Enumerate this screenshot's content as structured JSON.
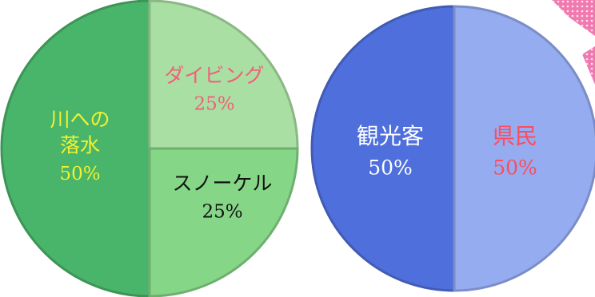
{
  "chart_data": [
    {
      "type": "pie",
      "slices": [
        {
          "label_lines": [
            "川への",
            "落水"
          ],
          "value": 50,
          "value_label": "50%",
          "color": "#49b56a",
          "label_color": "#f2f230"
        },
        {
          "label_lines": [
            "ダイビング"
          ],
          "value": 25,
          "value_label": "25%",
          "color": "#a9dfa2",
          "label_color": "#f0607a"
        },
        {
          "label_lines": [
            "スノーケル"
          ],
          "value": 25,
          "value_label": "25%",
          "color": "#86d687",
          "label_color": "#111111"
        }
      ]
    },
    {
      "type": "pie",
      "slices": [
        {
          "label_lines": [
            "観光客"
          ],
          "value": 50,
          "value_label": "50%",
          "color": "#4f6fdc",
          "label_color": "#ffffff"
        },
        {
          "label_lines": [
            "県民"
          ],
          "value": 50,
          "value_label": "50%",
          "color": "#95acf1",
          "label_color": "#ff4b5c"
        }
      ]
    }
  ],
  "decoration": {
    "arrow_color": "#f07ab0"
  }
}
